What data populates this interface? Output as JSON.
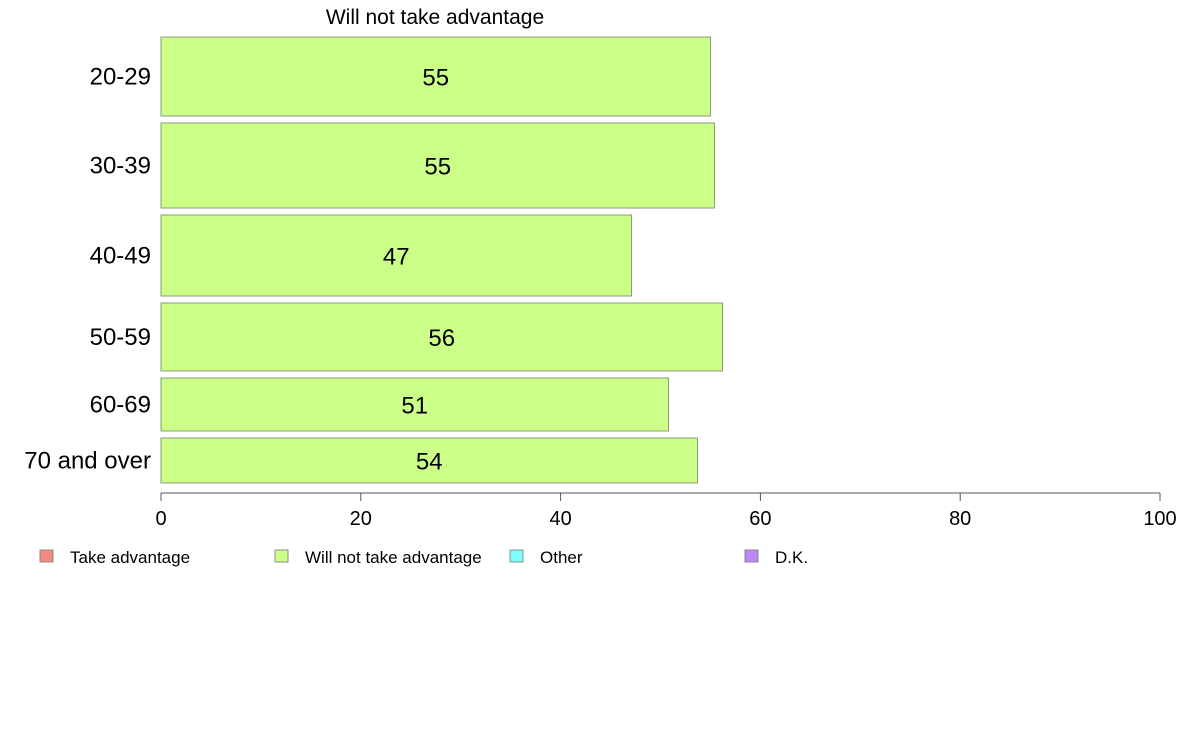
{
  "chart_data": {
    "type": "bar",
    "orientation": "horizontal",
    "title": "Will not take advantage",
    "categories": [
      "20-29",
      "30-39",
      "40-49",
      "50-59",
      "60-69",
      "70 and over"
    ],
    "series": [
      {
        "name": "Will not take advantage",
        "values": [
          55,
          55.4,
          47.1,
          56.2,
          50.8,
          53.7
        ],
        "labels": [
          "55",
          "55",
          "47",
          "56",
          "51",
          "54"
        ]
      }
    ],
    "xlim": [
      0,
      100
    ],
    "xticks": [
      0,
      20,
      40,
      60,
      80,
      100
    ],
    "grid": false,
    "legend_position": "bottom",
    "legend": [
      {
        "name": "Take advantage",
        "color": "#f48a84"
      },
      {
        "name": "Will not take advantage",
        "color": "#ccff88"
      },
      {
        "name": "Other",
        "color": "#7ffdfd"
      },
      {
        "name": "D.K.",
        "color": "#bb88f7"
      }
    ],
    "bar_color": "#ccff88",
    "bar_stroke": "#8a9a7a"
  }
}
